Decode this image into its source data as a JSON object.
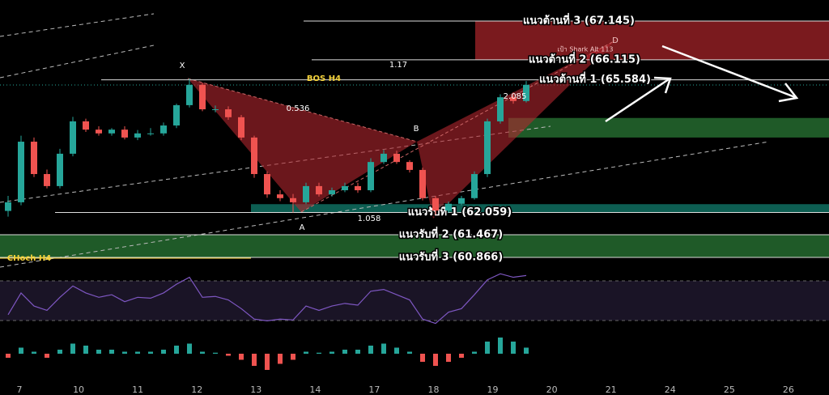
{
  "chart_data": {
    "type": "candlestick",
    "categories": [
      "7",
      "10",
      "11",
      "12",
      "13",
      "14",
      "17",
      "18",
      "19",
      "20",
      "21",
      "24",
      "25",
      "26"
    ],
    "ylim": [
      60.5,
      67.704
    ],
    "open": [
      62.1,
      62.33,
      63.94,
      63.08,
      62.76,
      63.62,
      64.48,
      64.26,
      64.16,
      64.26,
      64.05,
      64.16,
      64.16,
      64.37,
      64.91,
      65.45,
      64.8,
      64.8,
      64.59,
      64.05,
      63.08,
      62.54,
      62.44,
      62.33,
      62.76,
      62.54,
      62.65,
      62.76,
      62.65,
      63.4,
      63.62,
      63.4,
      63.19,
      62.44,
      62.11,
      62.29,
      62.44,
      63.08,
      64.48,
      65.12,
      65.02
    ],
    "high": [
      62.5,
      64.1,
      64.05,
      63.2,
      63.75,
      64.6,
      64.55,
      64.35,
      64.3,
      64.35,
      64.25,
      64.3,
      64.45,
      64.95,
      65.62,
      65.5,
      64.9,
      64.88,
      64.65,
      64.1,
      63.15,
      62.65,
      62.55,
      62.85,
      62.85,
      62.72,
      62.85,
      62.85,
      63.5,
      63.72,
      63.7,
      63.45,
      63.25,
      62.5,
      62.35,
      62.5,
      63.15,
      64.55,
      65.2,
      65.25,
      65.55
    ],
    "low": [
      61.95,
      62.25,
      63.0,
      62.7,
      62.7,
      63.55,
      64.2,
      64.1,
      64.1,
      64.0,
      63.98,
      64.1,
      64.1,
      64.3,
      64.85,
      64.75,
      64.72,
      64.52,
      63.98,
      62.98,
      62.45,
      62.36,
      62.06,
      62.28,
      62.48,
      62.48,
      62.6,
      62.58,
      62.6,
      63.35,
      63.35,
      63.12,
      62.38,
      62.0,
      62.05,
      62.25,
      62.4,
      63.0,
      64.42,
      64.95,
      64.98
    ],
    "close": [
      62.33,
      63.94,
      63.08,
      62.76,
      63.62,
      64.48,
      64.26,
      64.16,
      64.26,
      64.05,
      64.16,
      64.16,
      64.37,
      64.91,
      65.45,
      64.8,
      64.8,
      64.59,
      64.05,
      63.08,
      62.54,
      62.44,
      62.33,
      62.76,
      62.54,
      62.65,
      62.76,
      62.65,
      63.4,
      63.62,
      63.4,
      63.19,
      62.44,
      62.11,
      62.29,
      62.44,
      63.08,
      64.48,
      65.12,
      65.02,
      65.45
    ],
    "up_color": "#26a69a",
    "down_color": "#ef5350",
    "levels": [
      {
        "label": "แนวต้านที่ 3 (67.145)",
        "value": 67.145
      },
      {
        "label": "แนวต้านที่ 2 (66.115)",
        "value": 66.115
      },
      {
        "label": "แนวต้านที่ 1 (65.584)",
        "value": 65.584
      },
      {
        "label": "แนวรับที่ 1 (62.059)",
        "value": 62.059
      },
      {
        "label": "แนวรับที่ 2 (61.467)",
        "value": 61.467
      },
      {
        "label": "แนวรับที่ 3 (60.866)",
        "value": 60.866
      }
    ],
    "zones": [
      {
        "from": 66.115,
        "to": 67.145,
        "color": "#7a1a1e"
      },
      {
        "from": 64.05,
        "to": 64.57,
        "color": "#1f5a28"
      },
      {
        "from": 62.059,
        "to": 62.28,
        "color": "#0d5e52"
      },
      {
        "from": 60.866,
        "to": 61.467,
        "color": "#1f5a28"
      }
    ],
    "pattern_points": [
      "X",
      "A",
      "B",
      "D"
    ],
    "ratios": [
      1.17,
      0.536,
      1.058,
      2.085
    ],
    "target": "เป้า Shark Alt 113",
    "bos": "BOS H4",
    "choch": "CHoch H4",
    "rsi": {
      "color": "#7e57c2",
      "ylim": [
        20,
        85
      ],
      "values": [
        35,
        60,
        45,
        40,
        55,
        68,
        60,
        55,
        58,
        50,
        55,
        54,
        60,
        70,
        78,
        55,
        56,
        52,
        42,
        30,
        28,
        30,
        29,
        45,
        40,
        45,
        48,
        46,
        62,
        64,
        58,
        52,
        30,
        25,
        38,
        42,
        58,
        75,
        82,
        78,
        80
      ]
    },
    "histogram": {
      "ylim": [
        -0.1,
        0.1
      ],
      "values": [
        -0.02,
        0.03,
        0.01,
        -0.02,
        0.02,
        0.05,
        0.04,
        0.02,
        0.02,
        0.01,
        0.01,
        0.01,
        0.02,
        0.04,
        0.05,
        0.01,
        0.005,
        -0.01,
        -0.03,
        -0.06,
        -0.08,
        -0.05,
        -0.03,
        0.01,
        0.005,
        0.01,
        0.02,
        0.02,
        0.04,
        0.05,
        0.03,
        0.01,
        -0.04,
        -0.06,
        -0.04,
        -0.02,
        0.01,
        0.06,
        0.08,
        0.06,
        0.03
      ]
    }
  }
}
